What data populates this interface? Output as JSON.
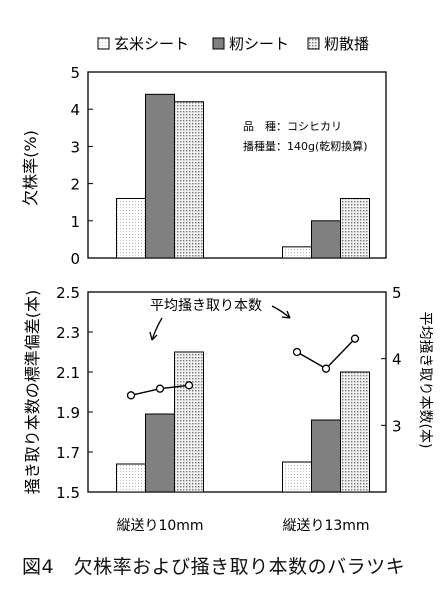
{
  "caption": "図4　欠株率および掻き取り本数のバラツキ",
  "legend": [
    {
      "label": "玄米シート",
      "color": "#ececec"
    },
    {
      "label": "籾シート",
      "color": "#808080"
    },
    {
      "label": "籾散播",
      "color": "#c8c8c8"
    }
  ],
  "chart_data": [
    {
      "type": "bar",
      "categories": [
        "縦送り10mm",
        "縦送り13mm"
      ],
      "series": [
        {
          "name": "玄米シート",
          "values": [
            1.6,
            0.3
          ]
        },
        {
          "name": "籾シート",
          "values": [
            4.4,
            1.0
          ]
        },
        {
          "name": "籾散播",
          "values": [
            4.2,
            1.6
          ]
        }
      ],
      "ylabel": "欠株率(%)",
      "ylim": [
        0,
        5
      ],
      "yticks": [
        "0",
        "1",
        "2",
        "3",
        "4",
        "5"
      ],
      "annotations": [
        "品　種：コシヒカリ",
        "播種量：140g(乾籾換算)"
      ]
    },
    {
      "type": "bar",
      "categories": [
        "縦送り10mm",
        "縦送り13mm"
      ],
      "series": [
        {
          "name": "玄米シート",
          "values": [
            1.64,
            1.65
          ]
        },
        {
          "name": "籾シート",
          "values": [
            1.89,
            1.86
          ]
        },
        {
          "name": "籾散播",
          "values": [
            2.2,
            2.1
          ]
        }
      ],
      "ylabel": "掻き取り本数の標準偏差(本)",
      "ylim": [
        1.5,
        2.5
      ],
      "yticks": [
        "1.5",
        "1.7",
        "1.9",
        "2.1",
        "2.3",
        "2.5"
      ],
      "line_series": {
        "name": "平均掻き取り本数",
        "axis": "right",
        "ylabel": "平均掻き取り本数(本)",
        "ylim": [
          2,
          5
        ],
        "yticks": [
          "3",
          "4",
          "5"
        ],
        "values": [
          [
            3.45,
            3.55,
            3.6
          ],
          [
            4.1,
            3.85,
            4.3
          ]
        ]
      }
    }
  ]
}
